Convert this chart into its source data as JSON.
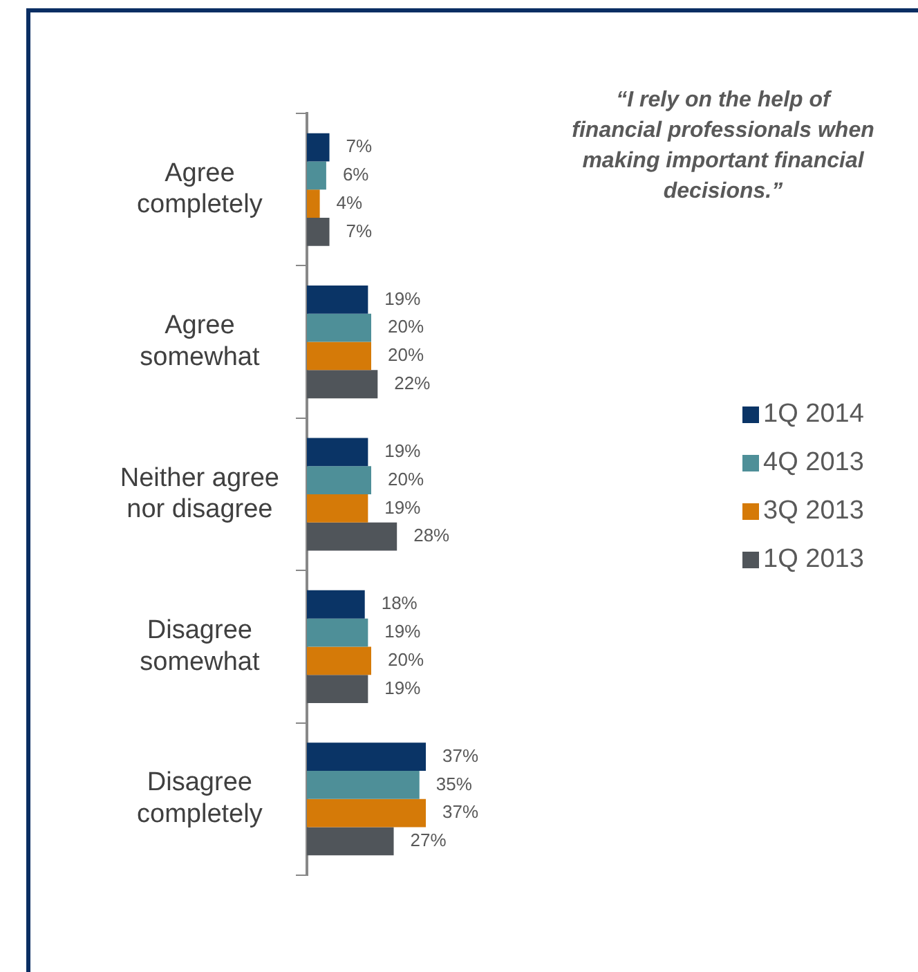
{
  "chart_data": {
    "type": "bar",
    "orientation": "horizontal",
    "categories": [
      "Agree completely",
      "Agree somewhat",
      "Neither agree nor disagree",
      "Disagree somewhat",
      "Disagree completely"
    ],
    "series": [
      {
        "name": "1Q 2014",
        "color": "#0a3466",
        "values": [
          7,
          19,
          19,
          18,
          37
        ],
        "value_labels": [
          "7%",
          "19%",
          "19%",
          "18%",
          "37%"
        ]
      },
      {
        "name": "4Q 2013",
        "color": "#4e8f98",
        "values": [
          6,
          20,
          20,
          19,
          35
        ],
        "value_labels": [
          "6%",
          "20%",
          "20%",
          "19%",
          "35%"
        ]
      },
      {
        "name": "3Q 2013",
        "color": "#d57a08",
        "values": [
          4,
          20,
          19,
          20,
          37
        ],
        "value_labels": [
          "4%",
          "20%",
          "19%",
          "20%",
          "37%"
        ]
      },
      {
        "name": "1Q 2013",
        "color": "#50555a",
        "values": [
          7,
          22,
          28,
          19,
          27
        ],
        "value_labels": [
          "7%",
          "22%",
          "28%",
          "19%",
          "27%"
        ]
      }
    ],
    "annotations": [
      "“I rely on the help of financial professionals when making important financial decisions.”"
    ],
    "legend": "right"
  }
}
